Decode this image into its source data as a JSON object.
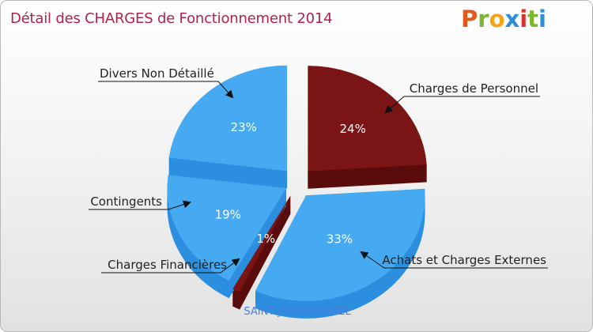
{
  "header": {
    "title": "Détail des CHARGES de Fonctionnement 2014",
    "logo": [
      "P",
      "r",
      "o",
      "x",
      "i",
      "t",
      "i"
    ]
  },
  "footer": {
    "commune": "SAINT-JEAN-MIRABEL"
  },
  "colors": {
    "title": "#b0214c",
    "blue_top": "#45aaf2",
    "blue_side": "#2b8ede",
    "red_top": "#7b1414",
    "red_side": "#5a0c0c",
    "logo": [
      "#e05a1c",
      "#7cb82f",
      "#f2a51a",
      "#2c8fd6",
      "#d9312b",
      "#7cb82f",
      "#2c8fd6"
    ]
  },
  "chart_data": {
    "type": "pie",
    "title": "Détail des CHARGES de Fonctionnement 2014",
    "slices": [
      {
        "label": "Charges de Personnel",
        "value": 24,
        "display": "24%",
        "color": "#7b1414",
        "side": "#5a0c0c"
      },
      {
        "label": "Achats et Charges Externes",
        "value": 33,
        "display": "33%",
        "color": "#45aaf2",
        "side": "#2b8ede"
      },
      {
        "label": "Charges Financières",
        "value": 1,
        "display": "1%",
        "color": "#7b1414",
        "side": "#5a0c0c"
      },
      {
        "label": "Contingents",
        "value": 19,
        "display": "19%",
        "color": "#45aaf2",
        "side": "#2b8ede"
      },
      {
        "label": "Divers Non Détaillé",
        "value": 23,
        "display": "23%",
        "color": "#45aaf2",
        "side": "#2b8ede"
      }
    ]
  }
}
